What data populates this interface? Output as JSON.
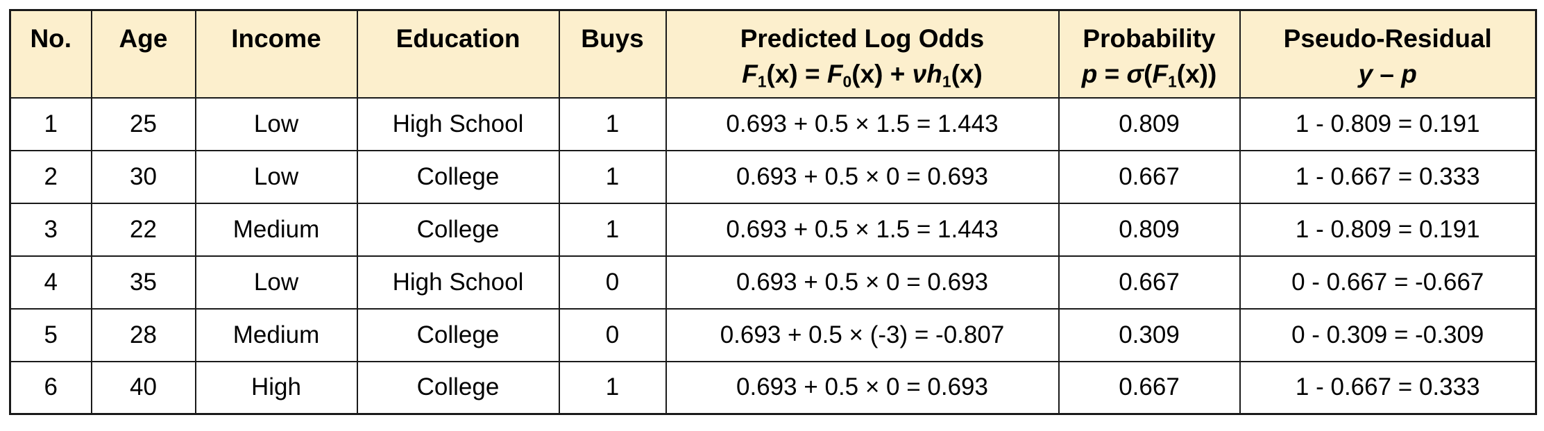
{
  "colors": {
    "header_bg": "#FCEFCD",
    "border": "#1A1A1A",
    "text": "#000000",
    "page_bg": "#FFFFFF"
  },
  "chart_data": {
    "type": "table",
    "columns": [
      {
        "id": "no",
        "label": "No."
      },
      {
        "id": "age",
        "label": "Age"
      },
      {
        "id": "income",
        "label": "Income"
      },
      {
        "id": "education",
        "label": "Education"
      },
      {
        "id": "buys",
        "label": "Buys"
      },
      {
        "id": "log_odds",
        "label": "Predicted Log Odds",
        "formula_parts": [
          {
            "t": "F",
            "s": "bi"
          },
          {
            "t": "1",
            "s": "sub"
          },
          {
            "t": "(x) = ",
            "s": "b"
          },
          {
            "t": "F",
            "s": "bi"
          },
          {
            "t": "0",
            "s": "sub"
          },
          {
            "t": "(x) + ",
            "s": "b"
          },
          {
            "t": "νh",
            "s": "bi"
          },
          {
            "t": "1",
            "s": "sub"
          },
          {
            "t": "(x)",
            "s": "b"
          }
        ]
      },
      {
        "id": "probability",
        "label": "Probability",
        "formula_parts": [
          {
            "t": "p",
            "s": "bi"
          },
          {
            "t": " = ",
            "s": "b"
          },
          {
            "t": "σ",
            "s": "bi"
          },
          {
            "t": "(",
            "s": "b"
          },
          {
            "t": "F",
            "s": "bi"
          },
          {
            "t": "1",
            "s": "sub"
          },
          {
            "t": "(x))",
            "s": "b"
          }
        ]
      },
      {
        "id": "pseudo_residual",
        "label": "Pseudo-Residual",
        "formula_parts": [
          {
            "t": "y",
            "s": "bi"
          },
          {
            "t": " – ",
            "s": "b"
          },
          {
            "t": "p",
            "s": "bi"
          }
        ]
      }
    ],
    "rows": [
      {
        "no": "1",
        "age": "25",
        "income": "Low",
        "education": "High School",
        "buys": "1",
        "log_odds": "0.693 + 0.5 × 1.5 = 1.443",
        "probability": "0.809",
        "pseudo_residual": "1 - 0.809 = 0.191"
      },
      {
        "no": "2",
        "age": "30",
        "income": "Low",
        "education": "College",
        "buys": "1",
        "log_odds": "0.693 + 0.5 × 0 = 0.693",
        "probability": "0.667",
        "pseudo_residual": "1 - 0.667 = 0.333"
      },
      {
        "no": "3",
        "age": "22",
        "income": "Medium",
        "education": "College",
        "buys": "1",
        "log_odds": "0.693 + 0.5 × 1.5 = 1.443",
        "probability": "0.809",
        "pseudo_residual": "1 - 0.809 = 0.191"
      },
      {
        "no": "4",
        "age": "35",
        "income": "Low",
        "education": "High School",
        "buys": "0",
        "log_odds": "0.693 + 0.5 × 0 = 0.693",
        "probability": "0.667",
        "pseudo_residual": "0 - 0.667 = -0.667"
      },
      {
        "no": "5",
        "age": "28",
        "income": "Medium",
        "education": "College",
        "buys": "0",
        "log_odds": "0.693 + 0.5 × (-3) = -0.807",
        "probability": "0.309",
        "pseudo_residual": "0 - 0.309 = -0.309"
      },
      {
        "no": "6",
        "age": "40",
        "income": "High",
        "education": "College",
        "buys": "1",
        "log_odds": "0.693 + 0.5 × 0 = 0.693",
        "probability": "0.667",
        "pseudo_residual": "1 - 0.667 = 0.333"
      }
    ]
  }
}
